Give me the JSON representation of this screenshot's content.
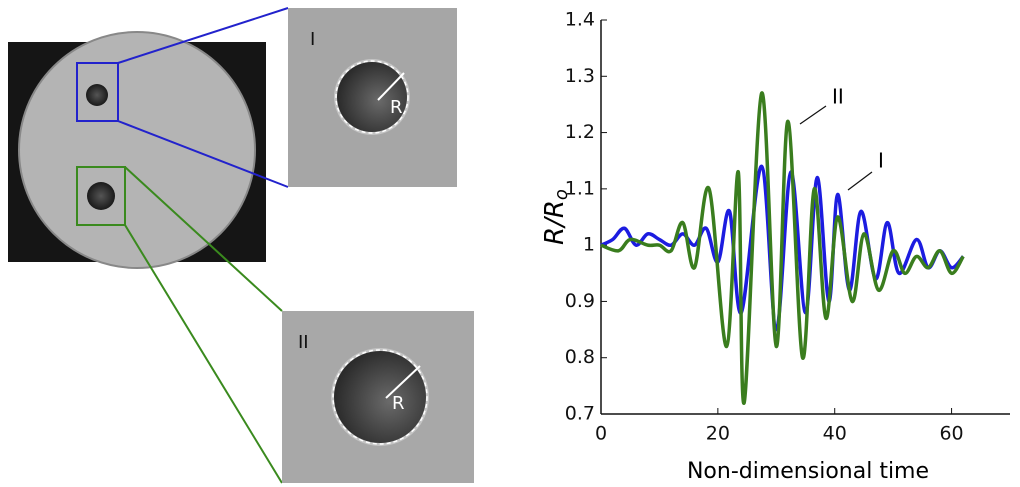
{
  "chart_data": {
    "type": "line",
    "x_label": "Non-dimensional time",
    "y_label": {
      "main": "R/R",
      "sub": "o"
    },
    "xlim": [
      0,
      70
    ],
    "xticks": [
      0,
      20,
      40,
      60
    ],
    "ylim": [
      0.7,
      1.4
    ],
    "yticks": [
      0.7,
      0.8,
      0.9,
      1,
      1.1,
      1.2,
      1.3,
      1.4
    ],
    "series": [
      {
        "name": "I",
        "color": "#1c1ce0",
        "x": [
          0,
          2,
          4,
          6,
          8,
          10,
          12,
          14,
          16,
          18,
          20,
          22,
          24,
          27.5,
          30,
          32.5,
          35,
          37,
          39,
          40.5,
          42.5,
          44.5,
          47,
          49,
          51,
          54,
          56,
          58,
          60,
          62
        ],
        "values": [
          1.0,
          1.01,
          1.03,
          1.0,
          1.02,
          1.01,
          1.0,
          1.02,
          1.0,
          1.03,
          0.97,
          1.06,
          0.88,
          1.14,
          0.85,
          1.13,
          0.88,
          1.12,
          0.9,
          1.09,
          0.92,
          1.06,
          0.94,
          1.04,
          0.95,
          1.01,
          0.96,
          0.99,
          0.96,
          0.98
        ]
      },
      {
        "name": "II",
        "color": "#3a7d1e",
        "x": [
          0,
          3,
          5,
          8,
          10,
          12,
          14,
          16,
          18.5,
          21.5,
          23.5,
          24.5,
          27.5,
          30,
          32,
          34.5,
          36.5,
          38.5,
          40.5,
          43,
          45,
          47.5,
          50,
          52,
          54,
          56,
          58,
          60,
          62
        ],
        "values": [
          1.0,
          0.99,
          1.01,
          1.0,
          1.0,
          0.99,
          1.04,
          0.96,
          1.1,
          0.82,
          1.13,
          0.72,
          1.27,
          0.82,
          1.22,
          0.8,
          1.1,
          0.87,
          1.05,
          0.9,
          1.02,
          0.92,
          0.99,
          0.95,
          0.98,
          0.96,
          0.99,
          0.95,
          0.98
        ]
      }
    ]
  },
  "images": {
    "inset_1": {
      "label": "I",
      "radius_label": "R"
    },
    "inset_2": {
      "label": "II",
      "radius_label": "R"
    }
  }
}
